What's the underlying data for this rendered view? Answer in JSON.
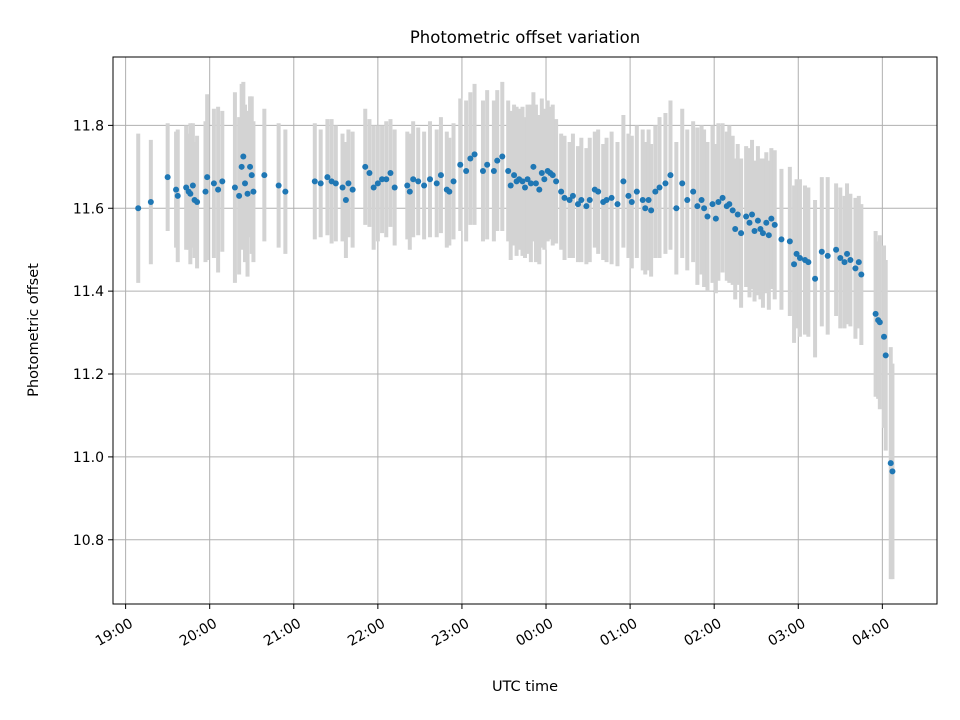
{
  "chart_data": {
    "type": "scatter",
    "title": "Photometric offset variation",
    "xlabel": "UTC time",
    "ylabel": "Photometric offset",
    "x_unit": "hours (UTC, continuing past midnight)",
    "xlim": [
      18.85,
      28.65
    ],
    "ylim": [
      10.645,
      11.965
    ],
    "xticks": [
      {
        "value": 19,
        "label": "19:00"
      },
      {
        "value": 20,
        "label": "20:00"
      },
      {
        "value": 21,
        "label": "21:00"
      },
      {
        "value": 22,
        "label": "22:00"
      },
      {
        "value": 23,
        "label": "23:00"
      },
      {
        "value": 24,
        "label": "00:00"
      },
      {
        "value": 25,
        "label": "01:00"
      },
      {
        "value": 26,
        "label": "02:00"
      },
      {
        "value": 27,
        "label": "03:00"
      },
      {
        "value": 28,
        "label": "04:00"
      }
    ],
    "yticks": [
      {
        "value": 10.8,
        "label": "10.8"
      },
      {
        "value": 11.0,
        "label": "11.0"
      },
      {
        "value": 11.2,
        "label": "11.2"
      },
      {
        "value": 11.4,
        "label": "11.4"
      },
      {
        "value": 11.6,
        "label": "11.6"
      },
      {
        "value": 11.8,
        "label": "11.8"
      }
    ],
    "grid": true,
    "colors": {
      "points": "#1f77b4",
      "errorbars": "#d3d3d3"
    },
    "series": [
      {
        "x": [
          19.15,
          19.3,
          19.5,
          19.6,
          19.62,
          19.72,
          19.75,
          19.77,
          19.8,
          19.82,
          19.85,
          19.95,
          19.97,
          20.05,
          20.1,
          20.15,
          20.3,
          20.35,
          20.38,
          20.4,
          20.42,
          20.45,
          20.48,
          20.5,
          20.52,
          20.65,
          20.82,
          20.9,
          21.25,
          21.32,
          21.4,
          21.45,
          21.5,
          21.58,
          21.62,
          21.65,
          21.7,
          21.85,
          21.9,
          21.95,
          22.0,
          22.05,
          22.1,
          22.15,
          22.2,
          22.35,
          22.38,
          22.42,
          22.48,
          22.55,
          22.62,
          22.7,
          22.75,
          22.82,
          22.85,
          22.9,
          22.98,
          23.05,
          23.1,
          23.15,
          23.25,
          23.3,
          23.38,
          23.42,
          23.48,
          23.55,
          23.58,
          23.62,
          23.65,
          23.68,
          23.72,
          23.75,
          23.78,
          23.82,
          23.85,
          23.88,
          23.92,
          23.95,
          23.98,
          24.02,
          24.05,
          24.08,
          24.12,
          24.18,
          24.22,
          24.28,
          24.32,
          24.38,
          24.42,
          24.48,
          24.52,
          24.58,
          24.62,
          24.68,
          24.72,
          24.78,
          24.85,
          24.92,
          24.98,
          25.02,
          25.08,
          25.15,
          25.18,
          25.22,
          25.25,
          25.3,
          25.35,
          25.42,
          25.48,
          25.55,
          25.62,
          25.68,
          25.75,
          25.8,
          25.85,
          25.88,
          25.92,
          25.98,
          26.02,
          26.05,
          26.1,
          26.15,
          26.18,
          26.22,
          26.25,
          26.28,
          26.32,
          26.38,
          26.42,
          26.45,
          26.48,
          26.52,
          26.55,
          26.58,
          26.62,
          26.65,
          26.68,
          26.72,
          26.8,
          26.9,
          26.95,
          26.98,
          27.02,
          27.08,
          27.12,
          27.2,
          27.28,
          27.35,
          27.45,
          27.5,
          27.55,
          27.58,
          27.62,
          27.68,
          27.72,
          27.75,
          27.92,
          27.95,
          27.97,
          28.02,
          28.04,
          28.1,
          28.12
        ],
        "y": [
          11.6,
          11.615,
          11.675,
          11.645,
          11.63,
          11.65,
          11.64,
          11.635,
          11.655,
          11.62,
          11.615,
          11.64,
          11.675,
          11.66,
          11.645,
          11.665,
          11.65,
          11.63,
          11.7,
          11.725,
          11.66,
          11.635,
          11.7,
          11.68,
          11.64,
          11.68,
          11.655,
          11.64,
          11.665,
          11.66,
          11.675,
          11.665,
          11.66,
          11.65,
          11.62,
          11.66,
          11.645,
          11.7,
          11.685,
          11.65,
          11.66,
          11.67,
          11.67,
          11.685,
          11.65,
          11.655,
          11.64,
          11.67,
          11.665,
          11.655,
          11.67,
          11.66,
          11.68,
          11.645,
          11.64,
          11.665,
          11.705,
          11.69,
          11.72,
          11.73,
          11.69,
          11.705,
          11.69,
          11.715,
          11.725,
          11.69,
          11.655,
          11.68,
          11.665,
          11.67,
          11.665,
          11.65,
          11.67,
          11.66,
          11.7,
          11.66,
          11.645,
          11.685,
          11.67,
          11.69,
          11.685,
          11.68,
          11.665,
          11.64,
          11.625,
          11.62,
          11.63,
          11.61,
          11.62,
          11.605,
          11.62,
          11.645,
          11.64,
          11.615,
          11.62,
          11.625,
          11.61,
          11.665,
          11.63,
          11.615,
          11.64,
          11.62,
          11.6,
          11.62,
          11.595,
          11.64,
          11.65,
          11.66,
          11.68,
          11.6,
          11.66,
          11.62,
          11.64,
          11.605,
          11.62,
          11.6,
          11.58,
          11.61,
          11.575,
          11.615,
          11.625,
          11.605,
          11.61,
          11.595,
          11.55,
          11.585,
          11.54,
          11.58,
          11.565,
          11.585,
          11.545,
          11.57,
          11.55,
          11.54,
          11.565,
          11.535,
          11.575,
          11.56,
          11.525,
          11.52,
          11.465,
          11.49,
          11.48,
          11.475,
          11.47,
          11.43,
          11.495,
          11.485,
          11.5,
          11.48,
          11.47,
          11.49,
          11.475,
          11.455,
          11.47,
          11.44,
          11.345,
          11.33,
          11.325,
          11.29,
          11.245,
          10.985,
          10.965
        ],
        "err": [
          0.18,
          0.15,
          0.13,
          0.14,
          0.16,
          0.15,
          0.14,
          0.17,
          0.15,
          0.14,
          0.16,
          0.17,
          0.2,
          0.18,
          0.2,
          0.17,
          0.23,
          0.19,
          0.2,
          0.18,
          0.19,
          0.2,
          0.17,
          0.19,
          0.17,
          0.16,
          0.15,
          0.15,
          0.14,
          0.13,
          0.14,
          0.15,
          0.14,
          0.13,
          0.14,
          0.13,
          0.14,
          0.14,
          0.13,
          0.15,
          0.14,
          0.13,
          0.14,
          0.13,
          0.14,
          0.13,
          0.14,
          0.14,
          0.13,
          0.13,
          0.14,
          0.13,
          0.14,
          0.14,
          0.13,
          0.14,
          0.16,
          0.17,
          0.16,
          0.17,
          0.17,
          0.18,
          0.17,
          0.17,
          0.18,
          0.17,
          0.18,
          0.17,
          0.18,
          0.17,
          0.18,
          0.17,
          0.18,
          0.19,
          0.18,
          0.19,
          0.18,
          0.18,
          0.17,
          0.17,
          0.16,
          0.17,
          0.15,
          0.14,
          0.15,
          0.14,
          0.15,
          0.14,
          0.15,
          0.14,
          0.15,
          0.14,
          0.15,
          0.14,
          0.15,
          0.16,
          0.15,
          0.16,
          0.15,
          0.16,
          0.16,
          0.17,
          0.16,
          0.17,
          0.16,
          0.16,
          0.17,
          0.17,
          0.18,
          0.16,
          0.18,
          0.17,
          0.17,
          0.19,
          0.18,
          0.19,
          0.18,
          0.19,
          0.18,
          0.19,
          0.18,
          0.18,
          0.19,
          0.18,
          0.17,
          0.17,
          0.18,
          0.17,
          0.18,
          0.18,
          0.17,
          0.18,
          0.17,
          0.18,
          0.17,
          0.18,
          0.17,
          0.18,
          0.17,
          0.18,
          0.19,
          0.18,
          0.19,
          0.18,
          0.18,
          0.19,
          0.18,
          0.19,
          0.16,
          0.17,
          0.16,
          0.17,
          0.16,
          0.17,
          0.16,
          0.17,
          0.2,
          0.19,
          0.21,
          0.22,
          0.23,
          0.28,
          0.26
        ]
      }
    ]
  }
}
